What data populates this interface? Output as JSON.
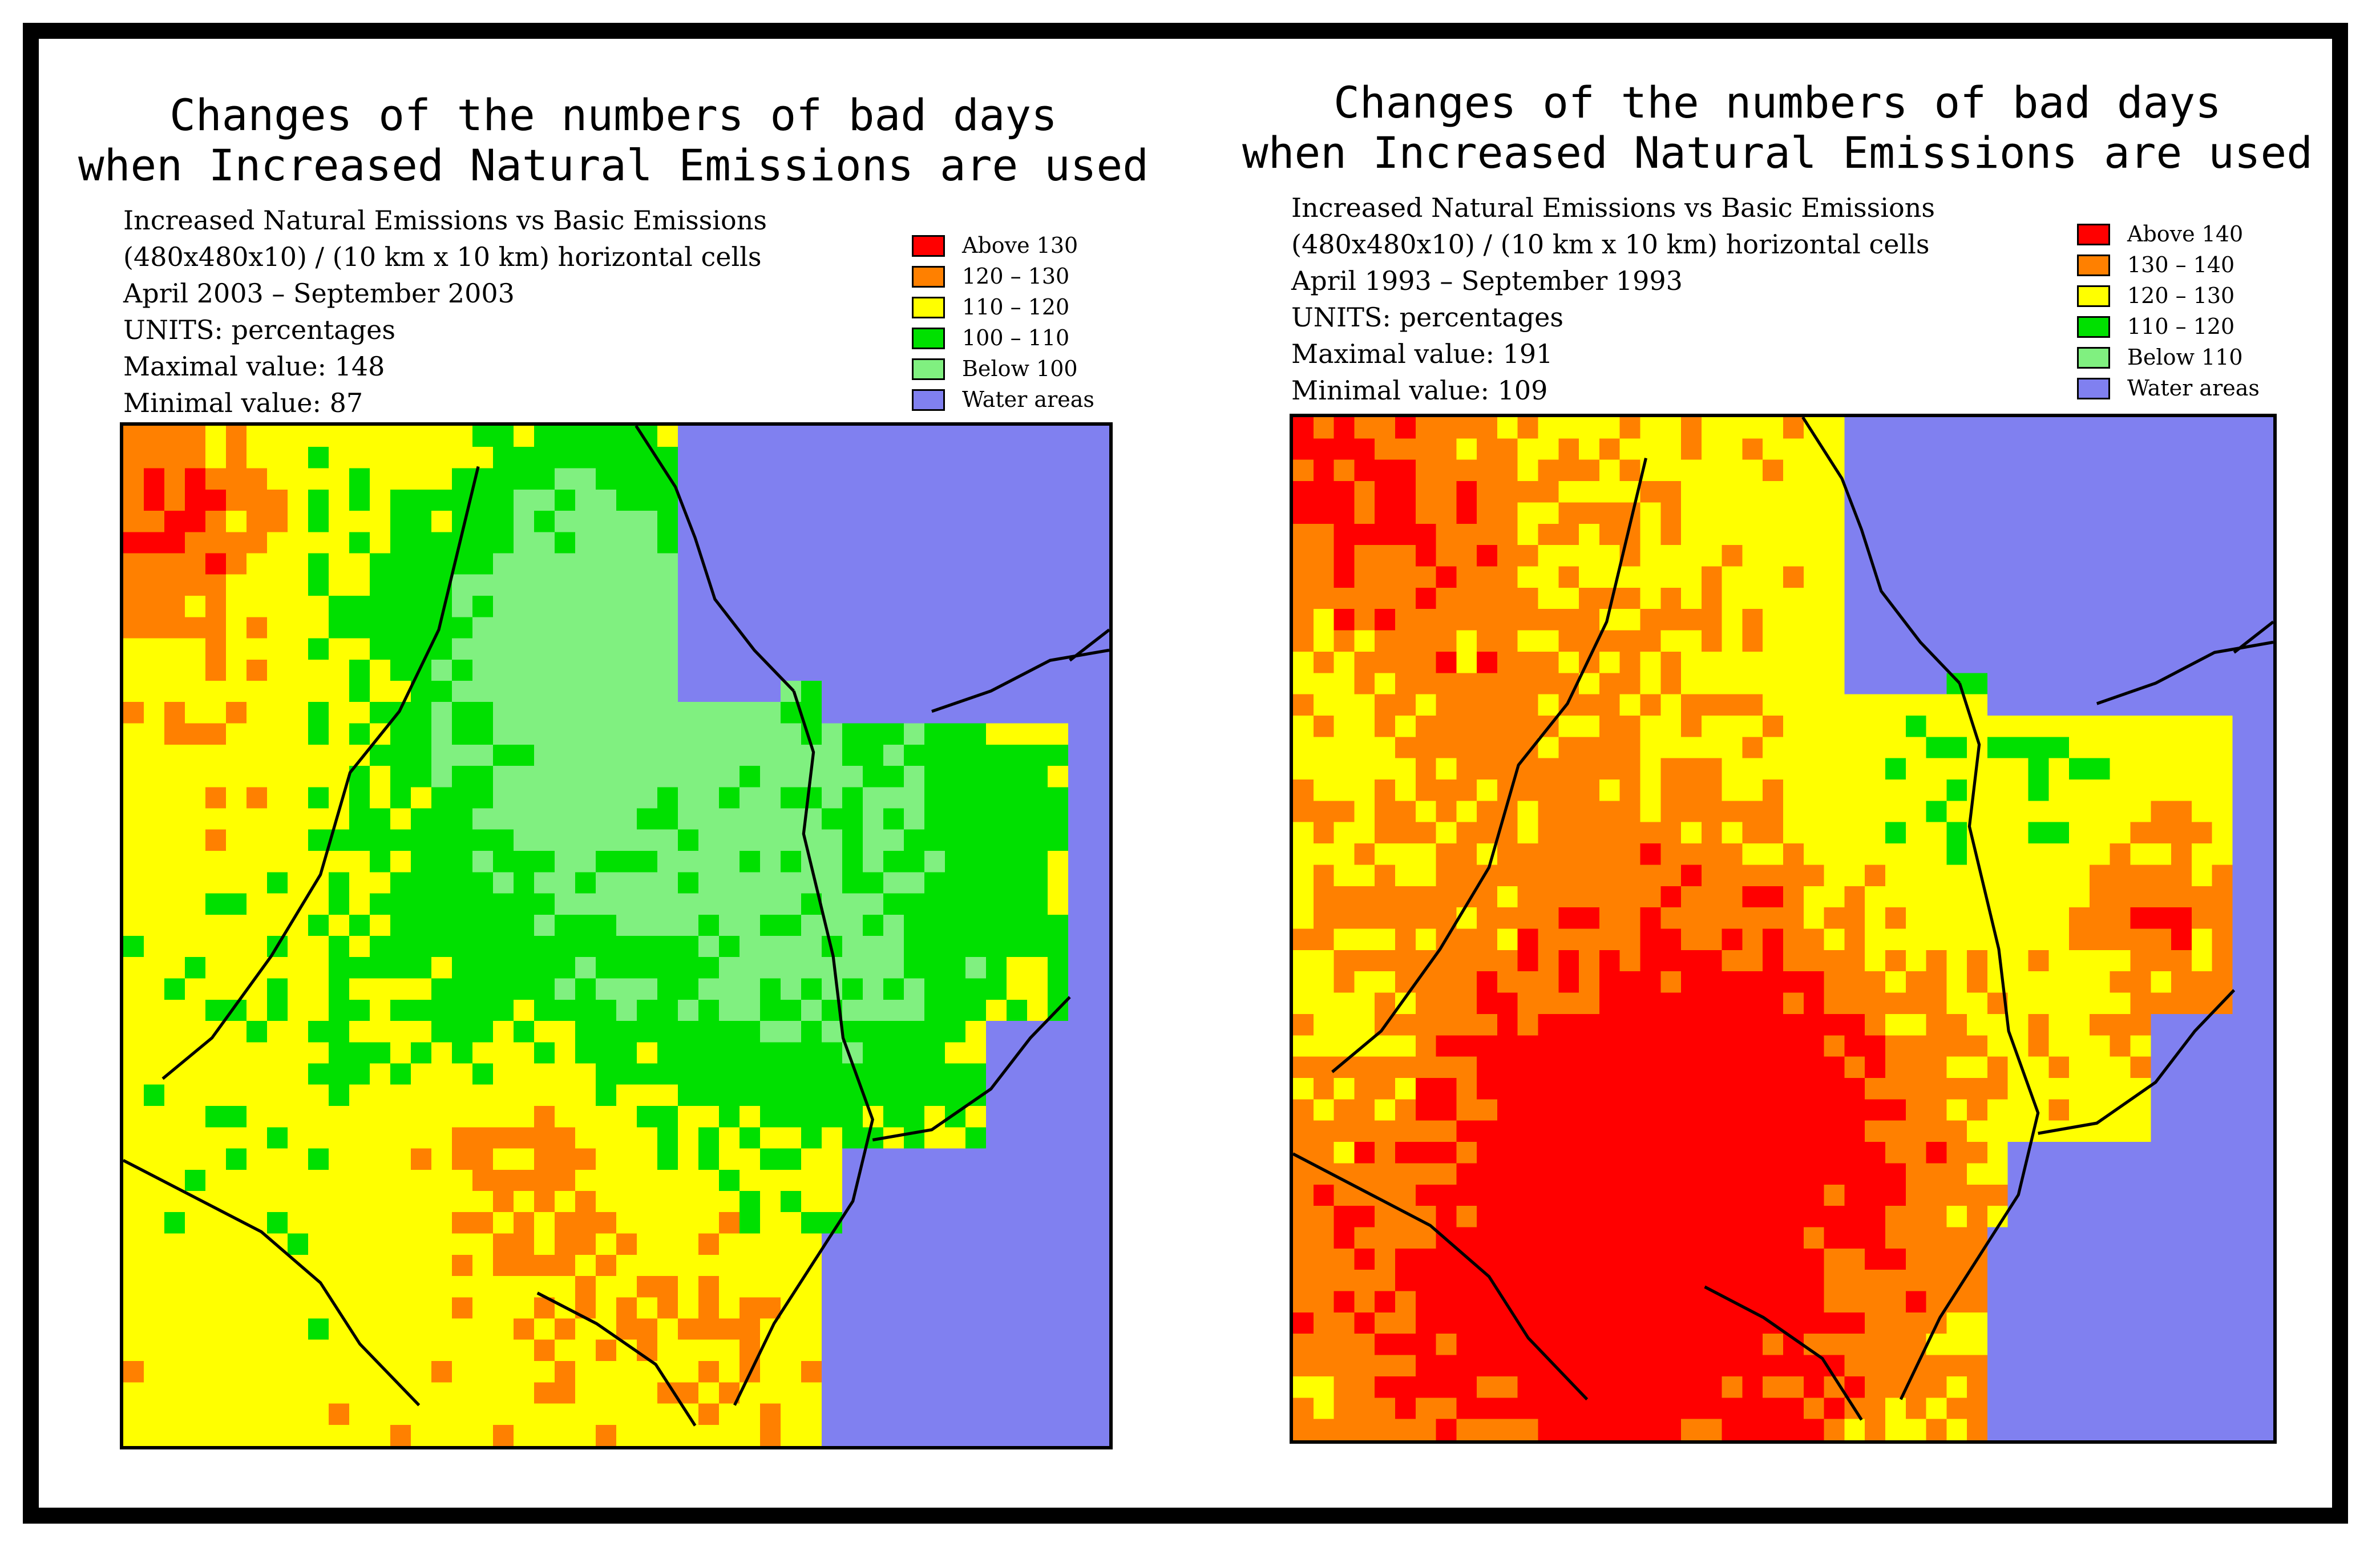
{
  "colors": {
    "red": "#ff0000",
    "orange": "#ff8000",
    "yellow": "#ffff00",
    "green": "#00e000",
    "lightgreen": "#80f080",
    "water": "#8080f0"
  },
  "panels": [
    {
      "title_line1": "Changes of the numbers of bad days",
      "title_line2": "when Increased Natural Emissions are used",
      "info": {
        "line1": "Increased Natural Emissions vs Basic Emissions",
        "line2": "(480x480x10) / (10 km x 10 km) horizontal cells",
        "period": "April 2003 – September 2003",
        "units": "UNITS: percentages",
        "max": "Maximal value:  148",
        "min": "Minimal value:    87"
      },
      "legend": [
        {
          "label": "Above 130",
          "color": "#ff0000"
        },
        {
          "label": "120 – 130",
          "color": "#ff8000"
        },
        {
          "label": "110 – 120",
          "color": "#ffff00"
        },
        {
          "label": "100 – 110",
          "color": "#00e000"
        },
        {
          "label": "Below 100",
          "color": "#80f080"
        },
        {
          "label": "Water areas",
          "color": "#8080f0"
        }
      ]
    },
    {
      "title_line1": "Changes of the numbers of bad days",
      "title_line2": "when Increased Natural Emissions are used",
      "info": {
        "line1": "Increased Natural Emissions vs Basic Emissions",
        "line2": "(480x480x10) / (10 km x 10 km) horizontal cells",
        "period": "April 1993 – September 1993",
        "units": "UNITS: percentages",
        "max": "Maximal value:  191",
        "min": "Minimal value:  109"
      },
      "legend": [
        {
          "label": "Above 140",
          "color": "#ff0000"
        },
        {
          "label": "130 – 140",
          "color": "#ff8000"
        },
        {
          "label": "120 – 130",
          "color": "#ffff00"
        },
        {
          "label": "110 – 120",
          "color": "#00e000"
        },
        {
          "label": "Below 110",
          "color": "#80f080"
        },
        {
          "label": "Water areas",
          "color": "#8080f0"
        }
      ]
    }
  ]
}
